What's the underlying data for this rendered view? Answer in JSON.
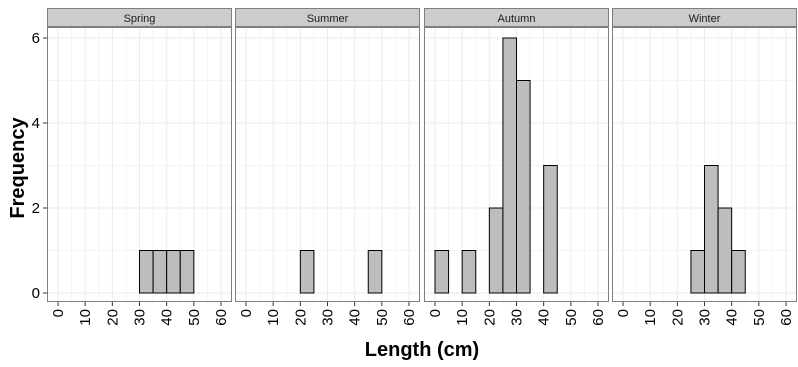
{
  "chart_data": {
    "type": "bar",
    "xlabel": "Length (cm)",
    "ylabel": "Frequency",
    "xlim": [
      0,
      60
    ],
    "ylim": [
      0,
      6
    ],
    "x_ticks": [
      "0",
      "10",
      "20",
      "30",
      "40",
      "50",
      "60"
    ],
    "y_ticks": [
      "0",
      "2",
      "4",
      "6"
    ],
    "bin_width": 5,
    "bin_starts": [
      0,
      5,
      10,
      15,
      20,
      25,
      30,
      35,
      40,
      45,
      50,
      55
    ],
    "grid": true,
    "facets": [
      {
        "name": "Spring",
        "values": [
          0,
          0,
          0,
          0,
          0,
          0,
          1,
          1,
          1,
          1,
          0,
          0
        ]
      },
      {
        "name": "Summer",
        "values": [
          0,
          0,
          0,
          0,
          1,
          0,
          0,
          0,
          0,
          1,
          0,
          0
        ]
      },
      {
        "name": "Autumn",
        "values": [
          1,
          0,
          1,
          0,
          2,
          6,
          5,
          0,
          3,
          0,
          0,
          0
        ]
      },
      {
        "name": "Winter",
        "values": [
          0,
          0,
          0,
          0,
          0,
          1,
          3,
          2,
          1,
          0,
          0,
          0
        ]
      }
    ],
    "colors": {
      "bar_fill": "#bdbdbd",
      "bar_stroke": "#000000",
      "strip_fill": "#cccccc",
      "panel_border": "#7f7f7f",
      "grid_major": "#ebebeb",
      "grid_minor": "#f5f5f5"
    }
  }
}
